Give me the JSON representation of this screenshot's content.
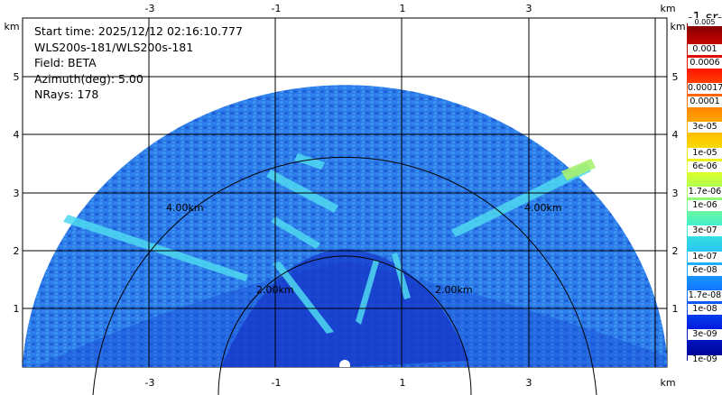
{
  "info": {
    "start_time": "Start time: 2025/12/12 02:16:10.777",
    "instrument": "WLS200s-181/WLS200s-181",
    "field": "Field: BETA",
    "azimuth": "Azimuth(deg): 5.00",
    "nrays": "NRays: 178"
  },
  "axes": {
    "unit": "km",
    "x_ticks": [
      "-3",
      "-1",
      "1",
      "3"
    ],
    "y_ticks": [
      "1",
      "2",
      "3",
      "4",
      "5"
    ],
    "range_rings": [
      "2.00km",
      "4.00km"
    ]
  },
  "colorbar": {
    "title": "-1 sr-",
    "top_partial": "0.005",
    "labels": [
      "0.001",
      "0.0006",
      "0.00017",
      "0.0001",
      "3e-05",
      "1e-05",
      "6e-06",
      "1.7e-06",
      "1e-06",
      "3e-07",
      "1e-07",
      "6e-08",
      "1.7e-08",
      "1e-08",
      "3e-09",
      "1e-09"
    ]
  },
  "colors": {
    "background_field": "#2a78e6",
    "strong_field": "#45d0f0",
    "weak_field": "#1538c8"
  }
}
